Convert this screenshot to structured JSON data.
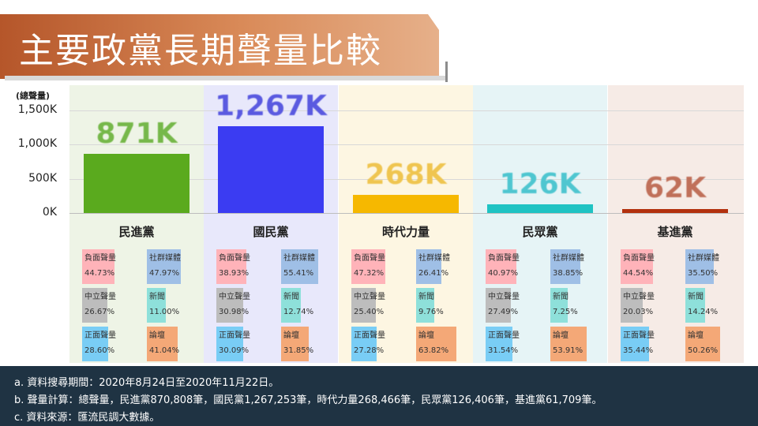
{
  "title": "主要政黨長期聲量比較",
  "colors": {
    "panel_bg": [
      "#eef4e6",
      "#e8e8fb",
      "#fdf6e2",
      "#e6f4f6",
      "#f6ebe6"
    ],
    "bar": [
      "#5aaa1e",
      "#3b3cf2",
      "#f6b800",
      "#1fc3c3",
      "#b3310e"
    ],
    "bar_label": [
      "#76b84a",
      "#5a5ae0",
      "#efc550",
      "#4fc6d0",
      "#c0705a"
    ],
    "negative": "#ffb3b9",
    "neutral": "#bdbdbd",
    "positive": "#79cdf5",
    "social": "#9fbfe6",
    "news": "#8ee0da",
    "forum": "#f4a877"
  },
  "chart_data": {
    "type": "bar",
    "ylabel": "(總聲量)",
    "ylim": [
      0,
      1500000
    ],
    "yticks": [
      0,
      500000,
      1000000,
      1500000
    ],
    "ytick_labels": [
      "0K",
      "500K",
      "1,000K",
      "1,500K"
    ],
    "grid": true,
    "categories": [
      "民進黨",
      "國民黨",
      "時代力量",
      "民眾黨",
      "基進黨"
    ],
    "values": [
      870808,
      1267253,
      268466,
      126406,
      61709
    ],
    "data_labels": [
      "871K",
      "1,267K",
      "268K",
      "126K",
      "62K"
    ]
  },
  "breakdown_labels": {
    "negative": "負面聲量",
    "neutral": "中立聲量",
    "positive": "正面聲量",
    "social": "社群媒體",
    "news": "新聞",
    "forum": "論壇"
  },
  "breakdown": [
    {
      "negative": "44.73%",
      "neutral": "26.67%",
      "positive": "28.60%",
      "social": "47.97%",
      "news": "11.00%",
      "forum": "41.04%"
    },
    {
      "negative": "38.93%",
      "neutral": "30.98%",
      "positive": "30.09%",
      "social": "55.41%",
      "news": "12.74%",
      "forum": "31.85%"
    },
    {
      "negative": "47.32%",
      "neutral": "25.40%",
      "positive": "27.28%",
      "social": "26.41%",
      "news": "9.76%",
      "forum": "63.82%"
    },
    {
      "negative": "40.97%",
      "neutral": "27.49%",
      "positive": "31.54%",
      "social": "38.85%",
      "news": "7.25%",
      "forum": "53.91%"
    },
    {
      "negative": "44.54%",
      "neutral": "20.03%",
      "positive": "35.44%",
      "social": "35.50%",
      "news": "14.24%",
      "forum": "50.26%"
    }
  ],
  "footer": {
    "line_a": "a. 資料搜尋期間：2020年8月24日至2020年11月22日。",
    "line_b": "b. 聲量計算：總聲量，民進黨870,808筆，國民黨1,267,253筆，時代力量268,466筆，民眾黨126,406筆，基進黨61,709筆。",
    "line_c": "c. 資料來源：匯流民調大數據。"
  }
}
